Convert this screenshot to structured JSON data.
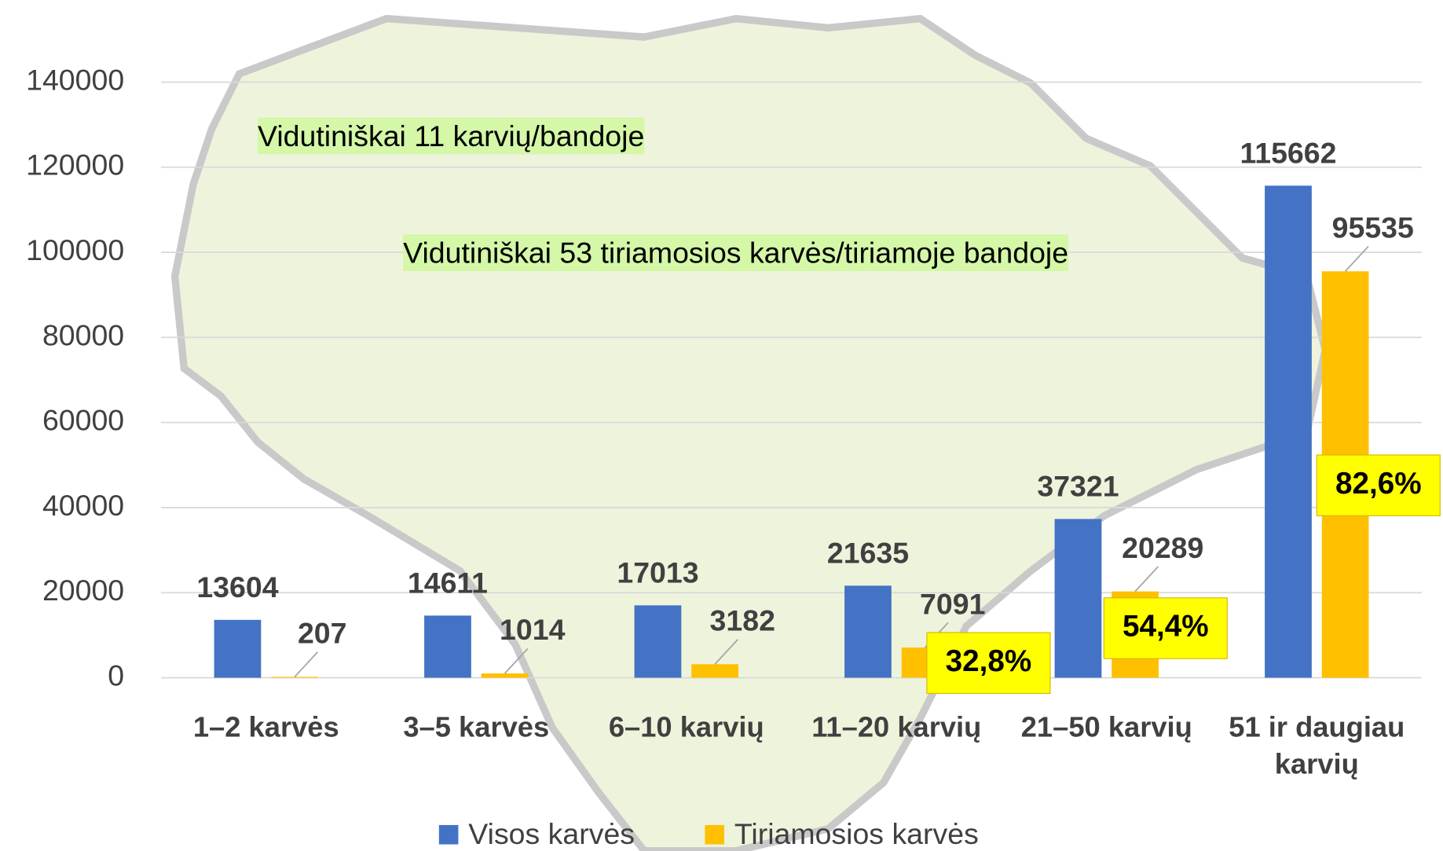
{
  "chart_data": {
    "type": "bar",
    "categories": [
      "1–2 karvės",
      "3–5 karvės",
      "6–10 karvių",
      "11–20 karvių",
      "21–50 karvių",
      "51 ir daugiau karvių"
    ],
    "series": [
      {
        "name": "Visos karvės",
        "color": "#4472c4",
        "values": [
          13604,
          14611,
          17013,
          21635,
          37321,
          115662
        ]
      },
      {
        "name": "Tiriamosios karvės",
        "color": "#ffc000",
        "values": [
          207,
          1014,
          3182,
          7091,
          20289,
          95535
        ]
      }
    ],
    "percent_labels": [
      null,
      null,
      null,
      "32,8%",
      "54,4%",
      "82,6%"
    ],
    "annotations": [
      "Vidutiniškai 11 karvių/bandoje",
      "Vidutiniškai 53 tiriamosios karvės/tiriamoje bandoje"
    ],
    "ylim": [
      0,
      140000
    ],
    "yticks": [
      0,
      20000,
      40000,
      60000,
      80000,
      100000,
      120000,
      140000
    ],
    "grid": true,
    "legend": "bottom"
  }
}
